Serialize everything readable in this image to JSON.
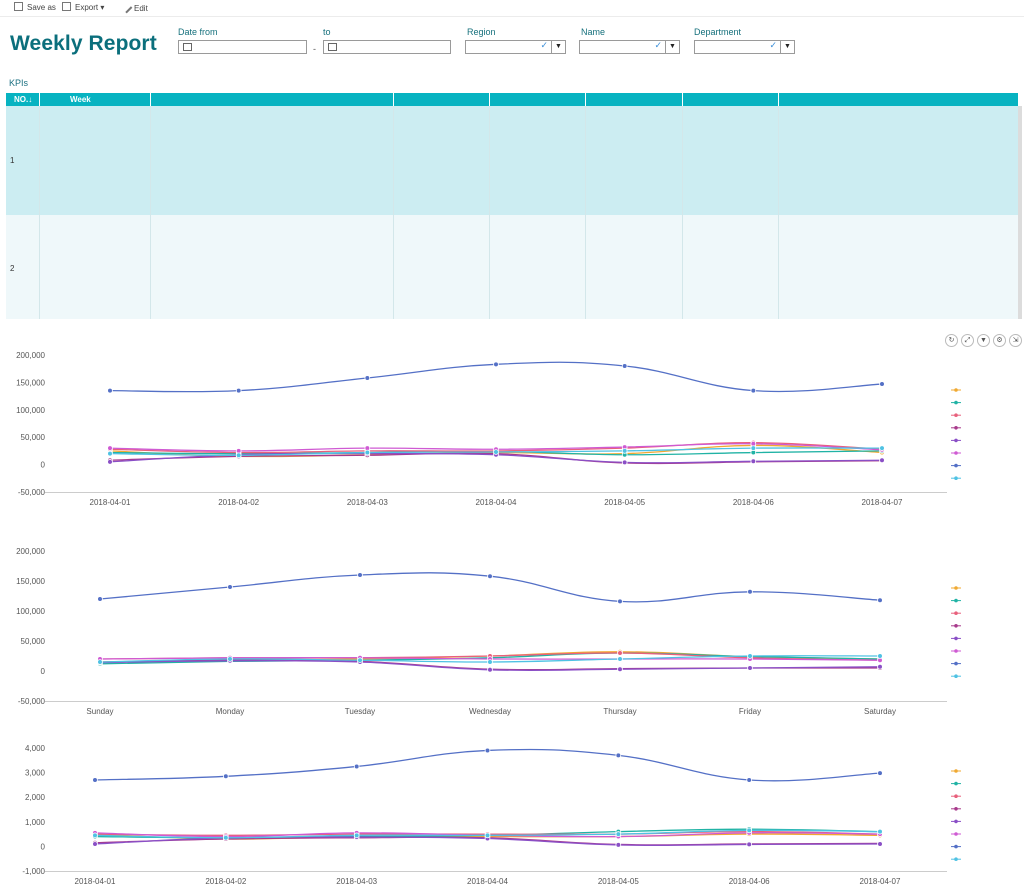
{
  "toolbar": {
    "save_as": "Save as",
    "export": "Export ▾",
    "edit": "Edit"
  },
  "title": "Weekly Report",
  "filters": {
    "date_from": "Date from",
    "to": "to",
    "dash": "-",
    "region": "Region",
    "name": "Name",
    "department": "Department"
  },
  "kpis_label": "KPIs",
  "table": {
    "columns": [
      "NO.↓",
      "Week",
      "",
      "",
      "",
      "",
      "",
      ""
    ],
    "rows": [
      {
        "no": "1"
      },
      {
        "no": "2"
      }
    ]
  },
  "series_colors": [
    "#f0a932",
    "#21b3a5",
    "#e8607c",
    "#a83a8c",
    "#8a4fc6",
    "#cf5ad3",
    "#5470c6",
    "#4fc2e3"
  ],
  "chart_data": [
    {
      "type": "line",
      "categories": [
        "2018-04-01",
        "2018-04-02",
        "2018-04-03",
        "2018-04-04",
        "2018-04-05",
        "2018-04-06",
        "2018-04-07"
      ],
      "ylim": [
        -50000,
        200000
      ],
      "yticks": [
        -50000,
        0,
        50000,
        100000,
        150000,
        200000
      ],
      "ytick_labels": [
        "-50,000",
        "0",
        "50,000",
        "100,000",
        "150,000",
        "200,000"
      ],
      "grid": false,
      "legend": "right",
      "series": [
        {
          "values": [
            25000,
            15000,
            18000,
            22000,
            20000,
            35000,
            22000
          ]
        },
        {
          "values": [
            22000,
            20000,
            22000,
            24000,
            18000,
            22000,
            25000
          ]
        },
        {
          "values": [
            28000,
            22000,
            25000,
            25000,
            30000,
            40000,
            28000
          ]
        },
        {
          "values": [
            8000,
            15000,
            17000,
            20000,
            3000,
            5000,
            7000
          ]
        },
        {
          "values": [
            5000,
            18000,
            20000,
            18000,
            4000,
            6000,
            8000
          ]
        },
        {
          "values": [
            30000,
            25000,
            30000,
            28000,
            32000,
            38000,
            27000
          ]
        },
        {
          "values": [
            135000,
            135000,
            158000,
            183000,
            180000,
            135000,
            147000
          ]
        },
        {
          "values": [
            20000,
            17000,
            22000,
            23000,
            25000,
            30000,
            30000
          ]
        }
      ]
    },
    {
      "type": "line",
      "categories": [
        "Sunday",
        "Monday",
        "Tuesday",
        "Wednesday",
        "Thursday",
        "Friday",
        "Saturday"
      ],
      "ylim": [
        -50000,
        200000
      ],
      "yticks": [
        -50000,
        0,
        50000,
        100000,
        150000,
        200000
      ],
      "ytick_labels": [
        "-50,000",
        "0",
        "50,000",
        "100,000",
        "150,000",
        "200,000"
      ],
      "grid": false,
      "legend": "right",
      "series": [
        {
          "values": [
            15000,
            18000,
            20000,
            25000,
            32000,
            24000,
            20000
          ]
        },
        {
          "values": [
            12000,
            16000,
            18000,
            22000,
            30000,
            24000,
            20000
          ]
        },
        {
          "values": [
            20000,
            22000,
            22000,
            25000,
            30000,
            22000,
            18000
          ]
        },
        {
          "values": [
            15000,
            18000,
            16000,
            3000,
            4000,
            5000,
            5000
          ]
        },
        {
          "values": [
            14000,
            17000,
            15000,
            2000,
            3000,
            5000,
            7000
          ]
        },
        {
          "values": [
            20000,
            22000,
            22000,
            20000,
            20000,
            20000,
            18000
          ]
        },
        {
          "values": [
            120000,
            140000,
            160000,
            158000,
            116000,
            132000,
            118000
          ]
        },
        {
          "values": [
            15000,
            20000,
            18000,
            15000,
            20000,
            25000,
            25000
          ]
        }
      ]
    },
    {
      "type": "line",
      "categories": [
        "2018-04-01",
        "2018-04-02",
        "2018-04-03",
        "2018-04-04",
        "2018-04-05",
        "2018-04-06",
        "2018-04-07"
      ],
      "ylim": [
        -1000,
        4000
      ],
      "yticks": [
        -1000,
        0,
        1000,
        2000,
        3000,
        4000
      ],
      "ytick_labels": [
        "-1,000",
        "0",
        "1,000",
        "2,000",
        "3,000",
        "4,000"
      ],
      "grid": false,
      "legend": "right",
      "series": [
        {
          "values": [
            500,
            300,
            400,
            400,
            400,
            500,
            450
          ]
        },
        {
          "values": [
            400,
            350,
            400,
            450,
            600,
            700,
            600
          ]
        },
        {
          "values": [
            500,
            450,
            500,
            500,
            500,
            600,
            500
          ]
        },
        {
          "values": [
            150,
            300,
            350,
            350,
            80,
            100,
            120
          ]
        },
        {
          "values": [
            100,
            350,
            380,
            320,
            60,
            80,
            100
          ]
        },
        {
          "values": [
            550,
            400,
            550,
            450,
            400,
            550,
            500
          ]
        },
        {
          "values": [
            2700,
            2850,
            3250,
            3900,
            3700,
            2700,
            2980
          ]
        },
        {
          "values": [
            450,
            350,
            450,
            450,
            500,
            650,
            600
          ]
        }
      ]
    }
  ]
}
